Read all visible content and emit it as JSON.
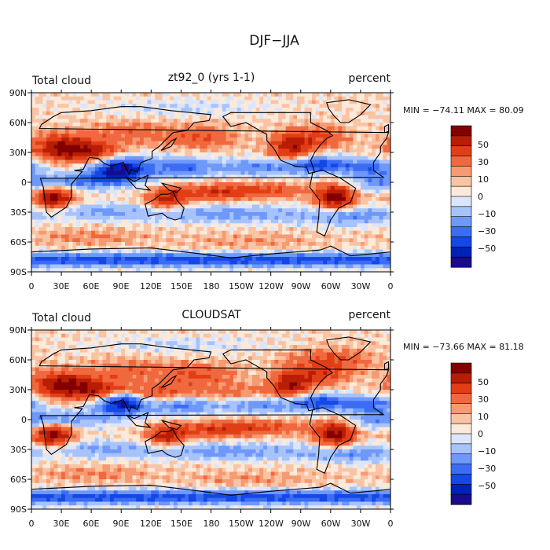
{
  "title": "DJF−JJA",
  "colors": {
    "scale": [
      "#1a0a8c",
      "#0022b8",
      "#1448e6",
      "#3c6cf4",
      "#6e98fa",
      "#a7c3fb",
      "#dbe6fc",
      "#fbe9da",
      "#f9c4a4",
      "#f69a72",
      "#f0683e",
      "#e23e16",
      "#b81e06",
      "#840000"
    ],
    "coast": "#000000",
    "land_hint": "#000000"
  },
  "colorbar_labels": [
    "50",
    "30",
    "10",
    "0",
    "−10",
    "−30",
    "−50"
  ],
  "chart_data": [
    {
      "type": "heatmap",
      "variable_label": "Total cloud",
      "title": "zt92_0 (yrs 1-1)",
      "units": "percent",
      "stats": "MIN = −74.11  MAX =  80.09",
      "min": -74.11,
      "max": 80.09,
      "xlim": [
        0,
        360
      ],
      "ylim": [
        -90,
        90
      ],
      "x_ticks": [
        "0",
        "30E",
        "60E",
        "90E",
        "120E",
        "150E",
        "180",
        "150W",
        "120W",
        "90W",
        "60W",
        "30W",
        "0"
      ],
      "y_ticks": [
        "90N",
        "60N",
        "30N",
        "0",
        "30S",
        "60S",
        "90S"
      ],
      "contour_levels": [
        -60,
        -50,
        -40,
        -30,
        -20,
        -10,
        -5,
        0,
        5,
        10,
        20,
        30,
        40,
        50,
        60
      ]
    },
    {
      "type": "heatmap",
      "variable_label": "Total cloud",
      "title": "CLOUDSAT",
      "units": "percent",
      "stats": "MIN = −73.66  MAX =  81.18",
      "min": -73.66,
      "max": 81.18,
      "xlim": [
        0,
        360
      ],
      "ylim": [
        -90,
        90
      ],
      "x_ticks": [
        "0",
        "30E",
        "60E",
        "90E",
        "120E",
        "150E",
        "180",
        "150W",
        "120W",
        "90W",
        "60W",
        "30W",
        "0"
      ],
      "y_ticks": [
        "90N",
        "60N",
        "30N",
        "0",
        "30S",
        "60S",
        "90S"
      ],
      "contour_levels": [
        -60,
        -50,
        -40,
        -30,
        -20,
        -10,
        -5,
        0,
        5,
        10,
        20,
        30,
        40,
        50,
        60
      ]
    }
  ]
}
